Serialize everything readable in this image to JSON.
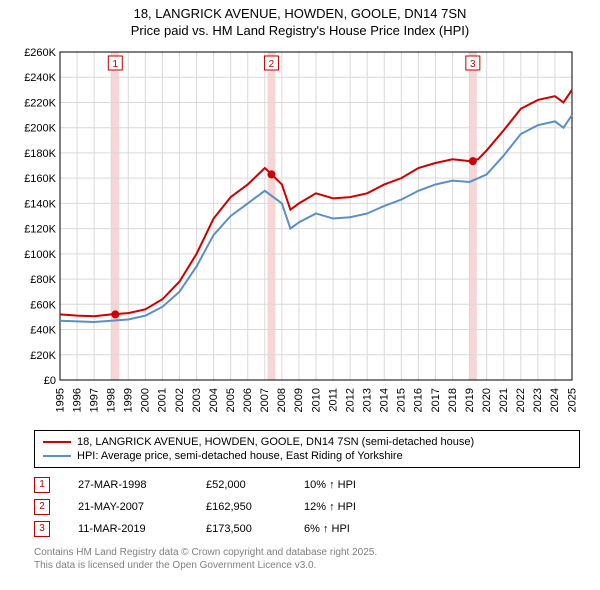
{
  "title_line1": "18, LANGRICK AVENUE, HOWDEN, GOOLE, DN14 7SN",
  "title_line2": "Price paid vs. HM Land Registry's House Price Index (HPI)",
  "chart": {
    "type": "line",
    "background_color": "#ffffff",
    "grid_color": "#d9d9d9",
    "border_color": "#000000",
    "x_years": [
      1995,
      1996,
      1997,
      1998,
      1999,
      2000,
      2001,
      2002,
      2003,
      2004,
      2005,
      2006,
      2007,
      2008,
      2009,
      2010,
      2011,
      2012,
      2013,
      2014,
      2015,
      2016,
      2017,
      2018,
      2019,
      2020,
      2021,
      2022,
      2023,
      2024,
      2025
    ],
    "ylim": [
      0,
      260000
    ],
    "ytick_step": 20000,
    "ytick_labels": [
      "£0",
      "£20K",
      "£40K",
      "£60K",
      "£80K",
      "£100K",
      "£120K",
      "£140K",
      "£160K",
      "£180K",
      "£200K",
      "£220K",
      "£240K",
      "£260K"
    ],
    "series": [
      {
        "name": "18, LANGRICK AVENUE, HOWDEN, GOOLE, DN14 7SN (semi-detached house)",
        "color": "#cc0000",
        "width": 2,
        "data": [
          [
            1995,
            52000
          ],
          [
            1996,
            51000
          ],
          [
            1997,
            50500
          ],
          [
            1998,
            52000
          ],
          [
            1999,
            53000
          ],
          [
            2000,
            56000
          ],
          [
            2001,
            64000
          ],
          [
            2002,
            78000
          ],
          [
            2003,
            100000
          ],
          [
            2004,
            128000
          ],
          [
            2005,
            145000
          ],
          [
            2006,
            155000
          ],
          [
            2007,
            168000
          ],
          [
            2007.4,
            162950
          ],
          [
            2008,
            155000
          ],
          [
            2008.5,
            135000
          ],
          [
            2009,
            140000
          ],
          [
            2010,
            148000
          ],
          [
            2011,
            144000
          ],
          [
            2012,
            145000
          ],
          [
            2013,
            148000
          ],
          [
            2014,
            155000
          ],
          [
            2015,
            160000
          ],
          [
            2016,
            168000
          ],
          [
            2017,
            172000
          ],
          [
            2018,
            175000
          ],
          [
            2019,
            173500
          ],
          [
            2019.5,
            175000
          ],
          [
            2020,
            182000
          ],
          [
            2021,
            198000
          ],
          [
            2022,
            215000
          ],
          [
            2023,
            222000
          ],
          [
            2024,
            225000
          ],
          [
            2024.5,
            220000
          ],
          [
            2025,
            230000
          ]
        ]
      },
      {
        "name": "HPI: Average price, semi-detached house, East Riding of Yorkshire",
        "color": "#5b8fc7",
        "width": 2,
        "data": [
          [
            1995,
            47000
          ],
          [
            1996,
            46500
          ],
          [
            1997,
            46000
          ],
          [
            1998,
            47000
          ],
          [
            1999,
            48000
          ],
          [
            2000,
            51000
          ],
          [
            2001,
            58000
          ],
          [
            2002,
            70000
          ],
          [
            2003,
            90000
          ],
          [
            2004,
            115000
          ],
          [
            2005,
            130000
          ],
          [
            2006,
            140000
          ],
          [
            2007,
            150000
          ],
          [
            2008,
            140000
          ],
          [
            2008.5,
            120000
          ],
          [
            2009,
            125000
          ],
          [
            2010,
            132000
          ],
          [
            2011,
            128000
          ],
          [
            2012,
            129000
          ],
          [
            2013,
            132000
          ],
          [
            2014,
            138000
          ],
          [
            2015,
            143000
          ],
          [
            2016,
            150000
          ],
          [
            2017,
            155000
          ],
          [
            2018,
            158000
          ],
          [
            2019,
            157000
          ],
          [
            2020,
            163000
          ],
          [
            2021,
            178000
          ],
          [
            2022,
            195000
          ],
          [
            2023,
            202000
          ],
          [
            2024,
            205000
          ],
          [
            2024.5,
            200000
          ],
          [
            2025,
            210000
          ]
        ]
      }
    ],
    "markers": [
      {
        "num": "1",
        "year": 1998.24,
        "price": 52000
      },
      {
        "num": "2",
        "year": 2007.39,
        "price": 162950
      },
      {
        "num": "3",
        "year": 2019.19,
        "price": 173500
      }
    ],
    "marker_band_color": "#f5c4c4"
  },
  "legend": {
    "items": [
      {
        "color": "#cc0000",
        "label": "18, LANGRICK AVENUE, HOWDEN, GOOLE, DN14 7SN (semi-detached house)"
      },
      {
        "color": "#5b8fc7",
        "label": "HPI: Average price, semi-detached house, East Riding of Yorkshire"
      }
    ]
  },
  "sales": [
    {
      "num": "1",
      "date": "27-MAR-1998",
      "price": "£52,000",
      "pct": "10% ↑ HPI"
    },
    {
      "num": "2",
      "date": "21-MAY-2007",
      "price": "£162,950",
      "pct": "12% ↑ HPI"
    },
    {
      "num": "3",
      "date": "11-MAR-2019",
      "price": "£173,500",
      "pct": "6% ↑ HPI"
    }
  ],
  "footer_line1": "Contains HM Land Registry data © Crown copyright and database right 2025.",
  "footer_line2": "This data is licensed under the Open Government Licence v3.0."
}
